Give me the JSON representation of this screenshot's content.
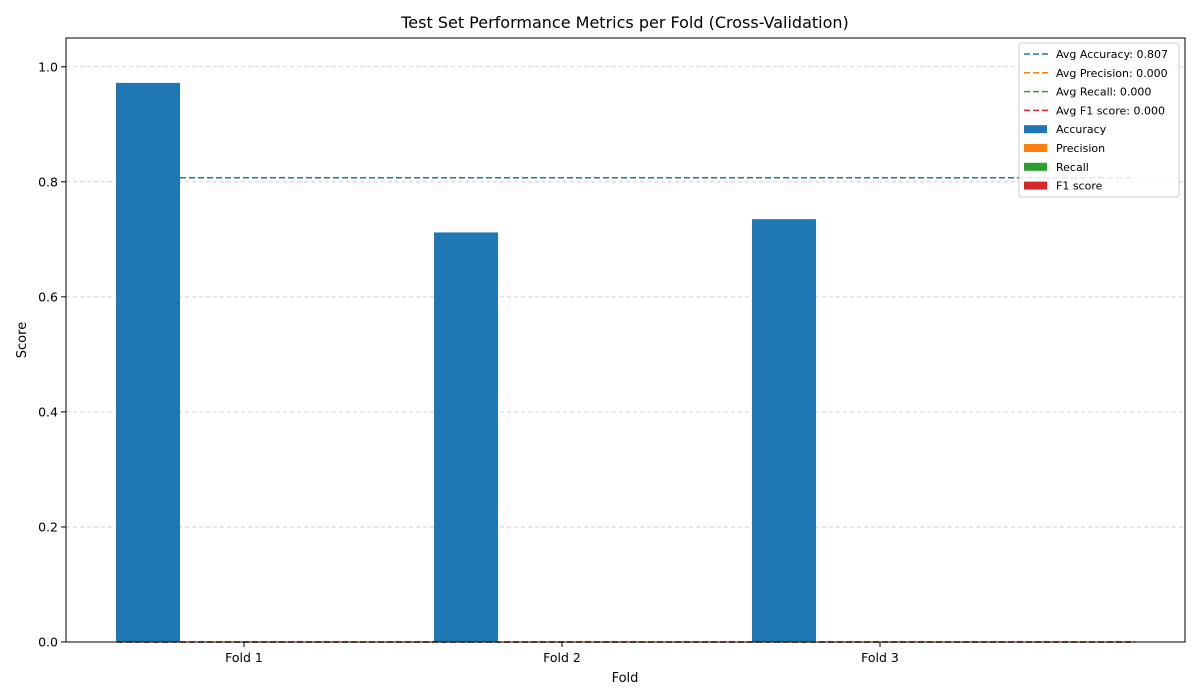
{
  "chart_data": {
    "type": "bar",
    "title": "Test Set Performance Metrics per Fold (Cross-Validation)",
    "xlabel": "Fold",
    "ylabel": "Score",
    "categories": [
      "Fold 1",
      "Fold 2",
      "Fold 3"
    ],
    "ylim": [
      0,
      1.05
    ],
    "yticks": [
      0.0,
      0.2,
      0.4,
      0.6,
      0.8,
      1.0
    ],
    "ytick_labels": [
      "0.0",
      "0.2",
      "0.4",
      "0.6",
      "0.8",
      "1.0"
    ],
    "grid": "y dashed",
    "legend_position": "top-right",
    "series": [
      {
        "name": "Accuracy",
        "values": [
          0.972,
          0.712,
          0.735
        ],
        "color": "#1f77b4"
      },
      {
        "name": "Precision",
        "values": [
          0.0,
          0.0,
          0.0
        ],
        "color": "#ff7f0e"
      },
      {
        "name": "Recall",
        "values": [
          0.0,
          0.0,
          0.0
        ],
        "color": "#2ca02c"
      },
      {
        "name": "F1 score",
        "values": [
          0.0,
          0.0,
          0.0
        ],
        "color": "#d62728"
      }
    ],
    "averages": [
      {
        "label": "Avg Accuracy: 0.807",
        "value": 0.807,
        "color": "#1f77b4"
      },
      {
        "label": "Avg Precision: 0.000",
        "value": 0.0,
        "color": "#ff7f0e"
      },
      {
        "label": "Avg Recall: 0.000",
        "value": 0.0,
        "color": "#2ca02c"
      },
      {
        "label": "Avg F1 score: 0.000",
        "value": 0.0,
        "color": "#d62728"
      }
    ]
  }
}
